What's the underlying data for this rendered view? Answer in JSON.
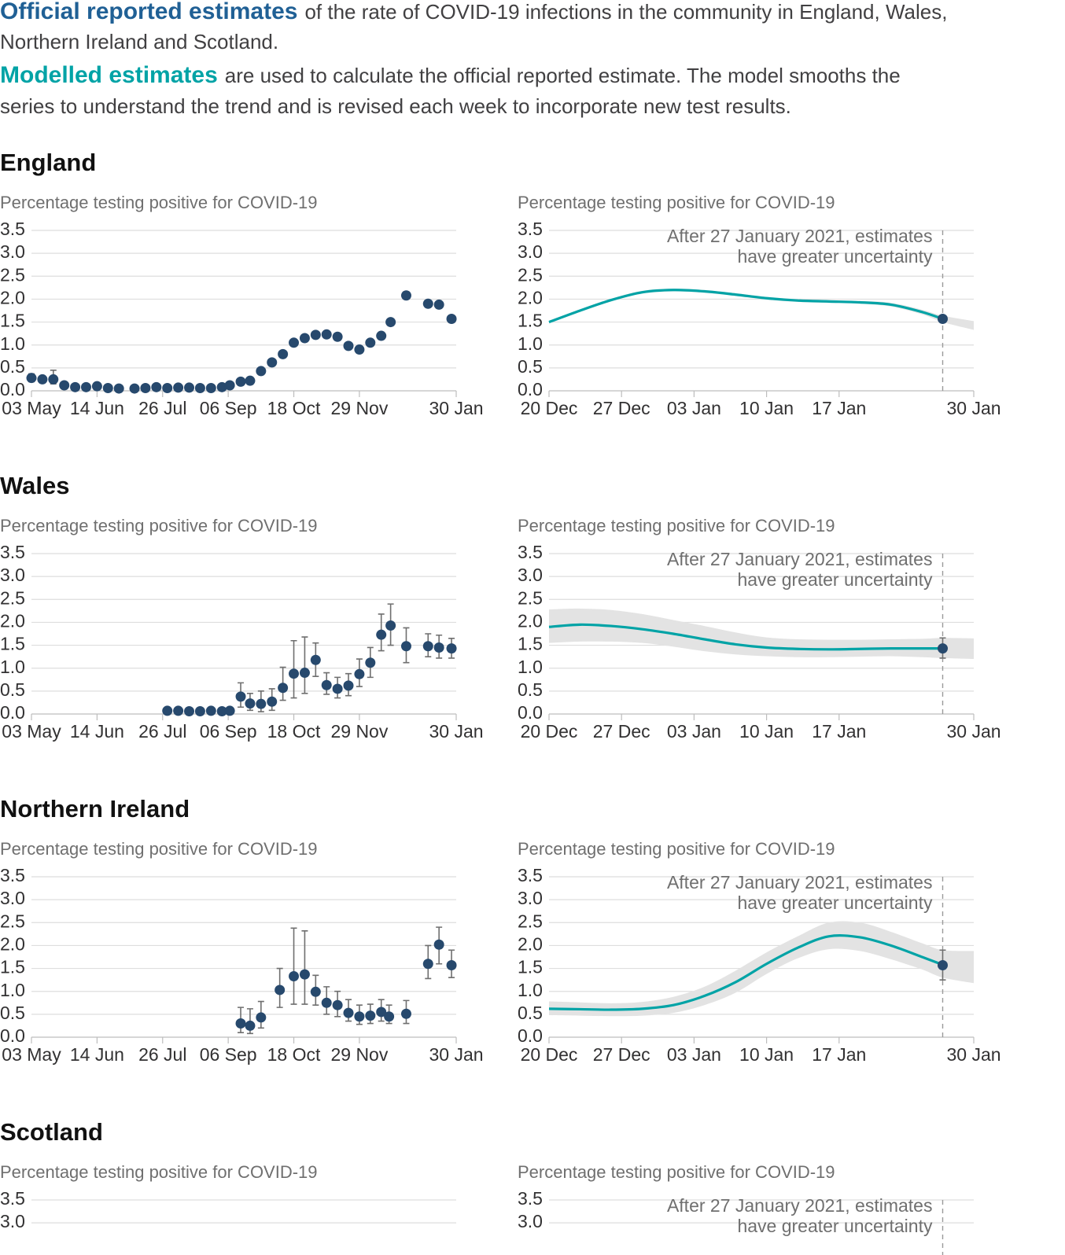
{
  "intro": [
    {
      "highlight": "Official reported estimates",
      "color": "#206095",
      "lines": [
        "of the rate of COVID-19 infections in the community in England, Wales,",
        "Northern Ireland and Scotland."
      ]
    },
    {
      "highlight": "Modelled estimates",
      "color": "#00a3a6",
      "lines": [
        "are used to calculate the official reported estimate. The model smooths the",
        "series to understand the trend and is revised each week to incorporate new test results."
      ]
    }
  ],
  "sections": [
    {
      "title": "England"
    },
    {
      "title": "Wales"
    },
    {
      "title": "Northern Ireland"
    },
    {
      "title": "Scotland"
    }
  ],
  "chart_data": [
    {
      "type": "scatter",
      "ylabel": "Percentage testing positive for COVID-19",
      "color": "#27496d",
      "ylim": [
        0,
        3.5
      ],
      "yticks": [
        {
          "value": 0,
          "label": "0.0"
        },
        0.5,
        {
          "value": 1,
          "label": "1.0"
        },
        1.5,
        {
          "value": 2,
          "label": "2.0"
        },
        2.5,
        {
          "value": 3,
          "label": "3.0"
        },
        3.5
      ],
      "xlim": [
        "03 May",
        "30 Jan"
      ],
      "xticks": [
        "03 May",
        "14 Jun",
        "26 Jul",
        "06 Sep",
        "18 Oct",
        "29 Nov",
        "30 Jan"
      ],
      "x": [
        "03 May",
        "10 May",
        "17 May",
        "24 May",
        "31 May",
        "07 Jun",
        "14 Jun",
        "21 Jun",
        "28 Jun",
        "08 Jul",
        "15 Jul",
        "22 Jul",
        "29 Jul",
        "05 Aug",
        "12 Aug",
        "19 Aug",
        "26 Aug",
        "02 Sep",
        "07 Sep",
        "14 Sep",
        "20 Sep",
        "27 Sep",
        "04 Oct",
        "11 Oct",
        "18 Oct",
        "25 Oct",
        "01 Nov",
        "08 Nov",
        "15 Nov",
        "22 Nov",
        "29 Nov",
        "06 Dec",
        "13 Dec",
        "19 Dec",
        "29 Dec",
        "12 Jan",
        "19 Jan",
        "27 Jan"
      ],
      "values": [
        0.28,
        0.25,
        0.25,
        0.12,
        0.08,
        0.08,
        0.1,
        0.06,
        0.05,
        0.05,
        0.06,
        0.08,
        0.06,
        0.07,
        0.07,
        0.06,
        0.06,
        0.08,
        0.12,
        0.2,
        0.22,
        0.43,
        0.62,
        0.8,
        1.05,
        1.15,
        1.22,
        1.23,
        1.18,
        0.98,
        0.9,
        1.05,
        1.2,
        1.5,
        2.08,
        1.9,
        1.88,
        1.57
      ],
      "lower": [
        0.2,
        0.2,
        0.15,
        0.09,
        0.05,
        0.05,
        0.07,
        0.04,
        0.03,
        0.03,
        0.04,
        0.06,
        0.04,
        0.05,
        0.05,
        0.04,
        0.04,
        0.06,
        0.09,
        0.16,
        0.18,
        0.39,
        0.58,
        0.76,
        1.01,
        1.11,
        1.18,
        1.19,
        1.14,
        0.94,
        0.86,
        1.01,
        1.16,
        1.46,
        2.0,
        1.86,
        1.84,
        1.53
      ],
      "upper": [
        0.37,
        0.32,
        0.45,
        0.16,
        0.11,
        0.11,
        0.15,
        0.09,
        0.08,
        0.08,
        0.09,
        0.11,
        0.09,
        0.1,
        0.1,
        0.09,
        0.09,
        0.11,
        0.16,
        0.25,
        0.27,
        0.48,
        0.66,
        0.85,
        1.09,
        1.2,
        1.26,
        1.27,
        1.23,
        1.02,
        0.95,
        1.09,
        1.24,
        1.54,
        2.16,
        1.94,
        1.92,
        1.61
      ]
    },
    {
      "type": "line",
      "ylabel": "Percentage testing positive for COVID-19",
      "color": "#00a3a6",
      "band_color": "#e3e3e3",
      "ylim": [
        0,
        3.5
      ],
      "yticks": [
        {
          "value": 0,
          "label": "0.0"
        },
        0.5,
        {
          "value": 1,
          "label": "1.0"
        },
        1.5,
        {
          "value": 2,
          "label": "2.0"
        },
        2.5,
        {
          "value": 3,
          "label": "3.0"
        },
        3.5
      ],
      "xlim": [
        "20 Dec",
        "30 Jan"
      ],
      "xticks": [
        "20 Dec",
        "27 Dec",
        "03 Jan",
        "10 Jan",
        "17 Jan",
        "30 Jan"
      ],
      "x": [
        "20 Dec",
        "23 Dec",
        "26 Dec",
        "29 Dec",
        "01 Jan",
        "04 Jan",
        "07 Jan",
        "10 Jan",
        "13 Jan",
        "16 Jan",
        "19 Jan",
        "22 Jan",
        "25 Jan",
        "27 Jan",
        "30 Jan"
      ],
      "values": [
        1.5,
        1.75,
        1.98,
        2.15,
        2.2,
        2.17,
        2.1,
        2.02,
        1.97,
        1.95,
        1.93,
        1.88,
        1.72,
        1.57,
        null
      ],
      "lower": [
        1.47,
        1.72,
        1.95,
        2.12,
        2.17,
        2.14,
        2.07,
        1.99,
        1.94,
        1.92,
        1.9,
        1.84,
        1.67,
        1.5,
        1.33
      ],
      "upper": [
        1.53,
        1.78,
        2.01,
        2.18,
        2.23,
        2.2,
        2.13,
        2.05,
        2.0,
        1.98,
        1.96,
        1.92,
        1.77,
        1.64,
        1.52
      ],
      "marker": {
        "x": "27 Jan",
        "value": 1.57,
        "lower": 1.52,
        "upper": 1.62,
        "color": "#27496d"
      },
      "annotation": {
        "x": "27 Jan",
        "lines": [
          "After 27 January 2021, estimates",
          "have greater uncertainty"
        ]
      }
    },
    {
      "type": "scatter",
      "ylabel": "Percentage testing positive for COVID-19",
      "color": "#27496d",
      "ylim": [
        0,
        3.5
      ],
      "yticks": [
        {
          "value": 0,
          "label": "0.0"
        },
        0.5,
        {
          "value": 1,
          "label": "1.0"
        },
        1.5,
        {
          "value": 2,
          "label": "2.0"
        },
        2.5,
        {
          "value": 3,
          "label": "3.0"
        },
        3.5
      ],
      "xlim": [
        "03 May",
        "30 Jan"
      ],
      "xticks": [
        "03 May",
        "14 Jun",
        "26 Jul",
        "06 Sep",
        "18 Oct",
        "29 Nov",
        "30 Jan"
      ],
      "x": [
        "29 Jul",
        "05 Aug",
        "12 Aug",
        "19 Aug",
        "26 Aug",
        "02 Sep",
        "07 Sep",
        "14 Sep",
        "20 Sep",
        "27 Sep",
        "04 Oct",
        "11 Oct",
        "18 Oct",
        "25 Oct",
        "01 Nov",
        "08 Nov",
        "15 Nov",
        "22 Nov",
        "29 Nov",
        "06 Dec",
        "13 Dec",
        "19 Dec",
        "29 Dec",
        "12 Jan",
        "19 Jan",
        "27 Jan"
      ],
      "values": [
        0.07,
        0.07,
        0.06,
        0.06,
        0.07,
        0.06,
        0.07,
        0.38,
        0.23,
        0.22,
        0.27,
        0.57,
        0.88,
        0.9,
        1.18,
        0.63,
        0.55,
        0.62,
        0.87,
        1.12,
        1.73,
        1.93,
        1.48,
        1.48,
        1.45,
        1.43
      ],
      "lower": [
        0.04,
        0.04,
        0.03,
        0.03,
        0.04,
        0.03,
        0.04,
        0.15,
        0.08,
        0.05,
        0.08,
        0.3,
        0.35,
        0.45,
        0.82,
        0.43,
        0.35,
        0.4,
        0.6,
        0.8,
        1.38,
        1.5,
        1.12,
        1.25,
        1.22,
        1.22
      ],
      "upper": [
        0.1,
        0.1,
        0.09,
        0.09,
        0.1,
        0.09,
        0.1,
        0.68,
        0.45,
        0.5,
        0.55,
        1.02,
        1.6,
        1.68,
        1.55,
        0.9,
        0.8,
        0.88,
        1.2,
        1.45,
        2.18,
        2.4,
        1.88,
        1.75,
        1.72,
        1.65
      ]
    },
    {
      "type": "line",
      "ylabel": "Percentage testing positive for COVID-19",
      "color": "#00a3a6",
      "band_color": "#e3e3e3",
      "ylim": [
        0,
        3.5
      ],
      "yticks": [
        {
          "value": 0,
          "label": "0.0"
        },
        0.5,
        {
          "value": 1,
          "label": "1.0"
        },
        1.5,
        {
          "value": 2,
          "label": "2.0"
        },
        2.5,
        {
          "value": 3,
          "label": "3.0"
        },
        3.5
      ],
      "xlim": [
        "20 Dec",
        "30 Jan"
      ],
      "xticks": [
        "20 Dec",
        "27 Dec",
        "03 Jan",
        "10 Jan",
        "17 Jan",
        "30 Jan"
      ],
      "x": [
        "20 Dec",
        "23 Dec",
        "26 Dec",
        "29 Dec",
        "01 Jan",
        "04 Jan",
        "07 Jan",
        "10 Jan",
        "13 Jan",
        "16 Jan",
        "19 Jan",
        "22 Jan",
        "25 Jan",
        "27 Jan",
        "30 Jan"
      ],
      "values": [
        1.9,
        1.95,
        1.92,
        1.85,
        1.75,
        1.63,
        1.52,
        1.45,
        1.42,
        1.41,
        1.42,
        1.43,
        1.43,
        1.43,
        null
      ],
      "lower": [
        1.55,
        1.58,
        1.58,
        1.55,
        1.47,
        1.37,
        1.3,
        1.26,
        1.24,
        1.24,
        1.25,
        1.26,
        1.24,
        1.22,
        1.2
      ],
      "upper": [
        2.28,
        2.3,
        2.27,
        2.18,
        2.05,
        1.92,
        1.78,
        1.67,
        1.63,
        1.62,
        1.62,
        1.63,
        1.64,
        1.66,
        1.65
      ],
      "marker": {
        "x": "27 Jan",
        "value": 1.43,
        "lower": 1.22,
        "upper": 1.66,
        "color": "#27496d"
      },
      "annotation": {
        "x": "27 Jan",
        "lines": [
          "After 27 January 2021, estimates",
          "have greater uncertainty"
        ]
      }
    },
    {
      "type": "scatter",
      "ylabel": "Percentage testing positive for COVID-19",
      "color": "#27496d",
      "ylim": [
        0,
        3.5
      ],
      "yticks": [
        {
          "value": 0,
          "label": "0.0"
        },
        0.5,
        {
          "value": 1,
          "label": "1.0"
        },
        1.5,
        {
          "value": 2,
          "label": "2.0"
        },
        2.5,
        {
          "value": 3,
          "label": "3.0"
        },
        3.5
      ],
      "xlim": [
        "03 May",
        "30 Jan"
      ],
      "xticks": [
        "03 May",
        "14 Jun",
        "26 Jul",
        "06 Sep",
        "18 Oct",
        "29 Nov",
        "30 Jan"
      ],
      "x": [
        "14 Sep",
        "20 Sep",
        "27 Sep",
        "09 Oct",
        "18 Oct",
        "25 Oct",
        "01 Nov",
        "08 Nov",
        "15 Nov",
        "22 Nov",
        "29 Nov",
        "06 Dec",
        "13 Dec",
        "18 Dec",
        "29 Dec",
        "12 Jan",
        "19 Jan",
        "27 Jan"
      ],
      "values": [
        0.3,
        0.25,
        0.43,
        1.03,
        1.33,
        1.37,
        0.99,
        0.75,
        0.7,
        0.53,
        0.45,
        0.47,
        0.55,
        0.45,
        0.51,
        1.6,
        2.02,
        1.57
      ],
      "lower": [
        0.1,
        0.08,
        0.2,
        0.65,
        0.72,
        0.72,
        0.7,
        0.5,
        0.45,
        0.35,
        0.28,
        0.3,
        0.35,
        0.3,
        0.3,
        1.28,
        1.6,
        1.3
      ],
      "upper": [
        0.65,
        0.62,
        0.78,
        1.5,
        2.38,
        2.32,
        1.35,
        1.1,
        1.0,
        0.82,
        0.7,
        0.72,
        0.82,
        0.7,
        0.8,
        2.0,
        2.4,
        1.9
      ]
    },
    {
      "type": "line",
      "ylabel": "Percentage testing positive for COVID-19",
      "color": "#00a3a6",
      "band_color": "#e3e3e3",
      "ylim": [
        0,
        3.5
      ],
      "yticks": [
        {
          "value": 0,
          "label": "0.0"
        },
        0.5,
        {
          "value": 1,
          "label": "1.0"
        },
        1.5,
        {
          "value": 2,
          "label": "2.0"
        },
        2.5,
        {
          "value": 3,
          "label": "3.0"
        },
        3.5
      ],
      "xlim": [
        "20 Dec",
        "30 Jan"
      ],
      "xticks": [
        "20 Dec",
        "27 Dec",
        "03 Jan",
        "10 Jan",
        "17 Jan",
        "30 Jan"
      ],
      "x": [
        "20 Dec",
        "23 Dec",
        "26 Dec",
        "29 Dec",
        "01 Jan",
        "04 Jan",
        "07 Jan",
        "10 Jan",
        "13 Jan",
        "16 Jan",
        "19 Jan",
        "22 Jan",
        "25 Jan",
        "27 Jan",
        "30 Jan"
      ],
      "values": [
        0.62,
        0.61,
        0.6,
        0.62,
        0.7,
        0.9,
        1.2,
        1.6,
        1.95,
        2.2,
        2.18,
        2.0,
        1.75,
        1.58,
        null
      ],
      "lower": [
        0.48,
        0.47,
        0.46,
        0.47,
        0.53,
        0.7,
        0.97,
        1.38,
        1.72,
        1.92,
        1.88,
        1.7,
        1.48,
        1.3,
        1.18
      ],
      "upper": [
        0.78,
        0.76,
        0.74,
        0.77,
        0.88,
        1.1,
        1.45,
        1.85,
        2.2,
        2.5,
        2.5,
        2.3,
        2.05,
        1.9,
        1.88
      ],
      "marker": {
        "x": "27 Jan",
        "value": 1.57,
        "lower": 1.25,
        "upper": 1.9,
        "color": "#27496d"
      },
      "annotation": {
        "x": "27 Jan",
        "lines": [
          "After 27 January 2021, estimates",
          "have greater uncertainty"
        ]
      }
    },
    {
      "type": "scatter",
      "ylabel": "Percentage testing positive for COVID-19",
      "ylim": [
        0,
        3.5
      ],
      "yticks": [
        {
          "value": 3,
          "label": "3.0"
        },
        3.5
      ]
    },
    {
      "type": "line",
      "ylabel": "Percentage testing positive for COVID-19",
      "ylim": [
        0,
        3.5
      ],
      "yticks": [
        {
          "value": 3,
          "label": "3.0"
        },
        3.5
      ],
      "xlim": [
        "20 Dec",
        "30 Jan"
      ],
      "annotation": {
        "x": "27 Jan",
        "lines": [
          "After 27 January 2021, estimates",
          "have greater uncertainty"
        ]
      }
    }
  ]
}
